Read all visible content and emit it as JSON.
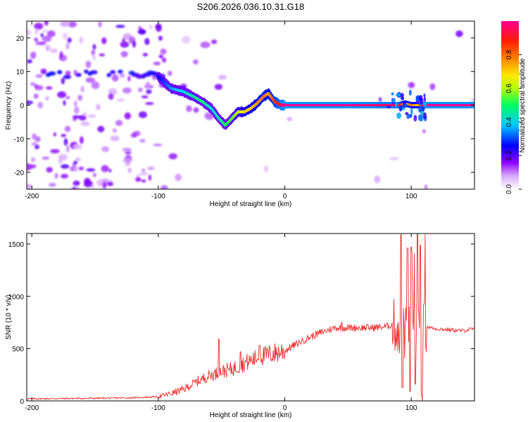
{
  "title": "S206.2026.036.10.31.G18",
  "chart_data": [
    {
      "type": "heatmap",
      "name": "spectrogram",
      "xlabel": "Height of straight line (km)",
      "ylabel": "Frequency (Hz)",
      "xlim": [
        -204,
        150
      ],
      "ylim": [
        -25,
        25
      ],
      "xticks": [
        -200,
        -100,
        0,
        100
      ],
      "yticks": [
        -20,
        -10,
        0,
        10,
        20
      ],
      "colorbar": {
        "label": "Normalized spectral amplitude",
        "range": [
          0,
          1
        ],
        "ticks": [
          0.0,
          0.2,
          0.4,
          0.6,
          0.8
        ],
        "tick_labels": [
          "0.0",
          "0.2",
          "0.4",
          "0.6",
          "0.8"
        ],
        "colors": [
          "#ffffff",
          "#9b00ff",
          "#0000ff",
          "#00c8ff",
          "#00ff60",
          "#c8ff00",
          "#ffe600",
          "#ff3000",
          "#ff0080"
        ]
      },
      "ridge": {
        "description": "dominant frequency track",
        "x": [
          -100,
          -90,
          -80,
          -72,
          -65,
          -58,
          -52,
          -47,
          -42,
          -37,
          -32,
          -27,
          -22,
          -17,
          -13,
          -8,
          -3,
          0,
          50,
          90,
          95,
          100,
          105,
          110,
          150
        ],
        "y": [
          8.5,
          5,
          4,
          2.5,
          1,
          -1,
          -4,
          -6,
          -4,
          -2,
          -2,
          -1,
          0.5,
          2.5,
          3.5,
          1,
          0,
          0,
          0,
          0,
          0.5,
          0,
          0,
          0,
          0
        ],
        "amplitude": [
          0.25,
          0.35,
          0.4,
          0.45,
          0.5,
          0.4,
          0.45,
          0.5,
          0.55,
          0.6,
          0.7,
          0.7,
          0.75,
          0.8,
          0.75,
          0.85,
          0.95,
          1.0,
          1.0,
          0.95,
          0.7,
          0.8,
          0.7,
          1.0,
          1.0
        ]
      }
    },
    {
      "type": "line",
      "name": "snr",
      "xlabel": "Height of straight line (km)",
      "ylabel": "SNR (10 * v/v)",
      "xlim": [
        -204,
        150
      ],
      "ylim": [
        0,
        1600
      ],
      "xticks": [
        -200,
        -100,
        0,
        100
      ],
      "yticks": [
        0,
        500,
        1000,
        1500
      ],
      "color": "#ee2a2a",
      "envelope": {
        "x": [
          -204,
          -150,
          -120,
          -100,
          -90,
          -80,
          -70,
          -60,
          -50,
          -40,
          -30,
          -20,
          -10,
          0,
          10,
          20,
          30,
          40,
          50,
          60,
          70,
          80,
          85,
          90,
          95,
          100,
          105,
          110,
          115,
          120,
          130,
          140,
          150
        ],
        "y": [
          20,
          25,
          30,
          40,
          70,
          110,
          180,
          240,
          280,
          310,
          370,
          420,
          450,
          480,
          550,
          610,
          660,
          700,
          700,
          700,
          700,
          710,
          730,
          700,
          640,
          700,
          650,
          720,
          700,
          690,
          680,
          670,
          690
        ]
      },
      "peaks": [
        {
          "x": -52,
          "y": 590
        },
        {
          "x": -35,
          "y": 470
        },
        {
          "x": -20,
          "y": 530
        },
        {
          "x": 45,
          "y": 750
        },
        {
          "x": 92,
          "y": 1590
        },
        {
          "x": 97,
          "y": 1460
        },
        {
          "x": 100,
          "y": 1470
        },
        {
          "x": 105,
          "y": 1600
        },
        {
          "x": 107,
          "y": 1490
        },
        {
          "x": 110,
          "y": 920
        }
      ],
      "troughs": [
        {
          "x": 93,
          "y": 130
        },
        {
          "x": 99,
          "y": 90
        },
        {
          "x": 103,
          "y": 160
        },
        {
          "x": 108,
          "y": 60
        }
      ]
    }
  ]
}
